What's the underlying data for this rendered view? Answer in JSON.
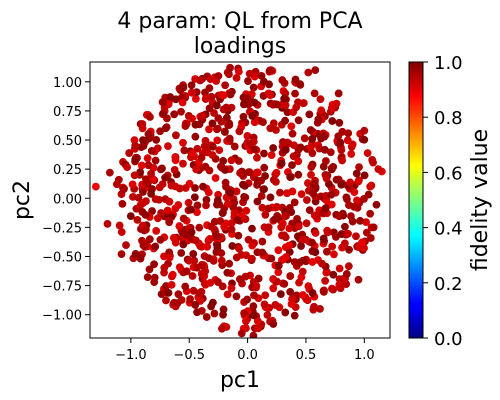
{
  "chart_data": {
    "type": "scatter",
    "title_lines": [
      "4 param:  QL from PCA",
      "loadings"
    ],
    "xlabel": "pc1",
    "ylabel": "pc2",
    "xlim": [
      -1.35,
      1.22
    ],
    "ylim": [
      -1.2,
      1.17
    ],
    "xticks": [
      -1.0,
      -0.5,
      0.0,
      0.5,
      1.0
    ],
    "xtick_labels": [
      "−1.0",
      "−0.5",
      "0.0",
      "0.5",
      "1.0"
    ],
    "yticks": [
      1.0,
      0.75,
      0.5,
      0.25,
      0.0,
      -0.25,
      -0.5,
      -0.75,
      -1.0
    ],
    "ytick_labels": [
      "1.00",
      "0.75",
      "0.50",
      "0.25",
      "0.00",
      "−0.25",
      "−0.50",
      "−0.75",
      "−1.00"
    ],
    "grid": false,
    "colorbar": {
      "label": "fidelity value",
      "colormap": "jet",
      "range": [
        0.0,
        1.0
      ],
      "ticks": [
        0.0,
        0.2,
        0.4,
        0.6,
        0.8,
        1.0
      ],
      "tick_labels": [
        "0.0",
        "0.2",
        "0.4",
        "0.6",
        "0.8",
        "1.0"
      ]
    },
    "series": [
      {
        "points": [
          [
            -1.3,
            0.1,
            0.89
          ],
          [
            1.15,
            0.23,
            0.91
          ],
          [
            1.12,
            0.25,
            0.93
          ],
          [
            1.05,
            0.1,
            0.92
          ],
          [
            -1.2,
            -0.22,
            0.95
          ],
          [
            -1.18,
            0.22,
            0.96
          ],
          [
            0.58,
            1.1,
            0.97
          ],
          [
            -0.15,
            1.12,
            0.96
          ],
          [
            0.52,
            1.08,
            0.95
          ],
          [
            0.05,
            -1.18,
            0.97
          ],
          [
            -0.05,
            -1.16,
            0.96
          ],
          [
            -0.22,
            -1.12,
            0.95
          ],
          [
            0.62,
            -0.95,
            0.95
          ],
          [
            0.95,
            -0.7,
            0.96
          ],
          [
            -0.85,
            0.55,
            0.98
          ],
          [
            -0.8,
            -0.72,
            0.97
          ],
          [
            -1.08,
            -0.48,
            0.96
          ],
          [
            1.0,
            0.58,
            0.95
          ],
          [
            -0.55,
            0.95,
            0.98
          ],
          [
            0.85,
            -0.65,
            0.97
          ],
          [
            -0.48,
            0.97,
            0.98
          ],
          [
            -0.6,
            -0.9,
            0.96
          ],
          [
            0.22,
            -1.08,
            0.98
          ],
          [
            -1.12,
            0.12,
            0.95
          ],
          [
            0.78,
            0.9,
            0.97
          ],
          [
            0.2,
            1.1,
            0.96
          ],
          [
            -0.35,
            -1.02,
            0.97
          ],
          [
            1.08,
            -0.25,
            0.96
          ],
          [
            0.45,
            0.98,
            0.98
          ],
          [
            0.9,
            -0.2,
            0.97
          ],
          [
            -0.25,
            1.05,
            0.96
          ]
        ]
      }
    ]
  }
}
